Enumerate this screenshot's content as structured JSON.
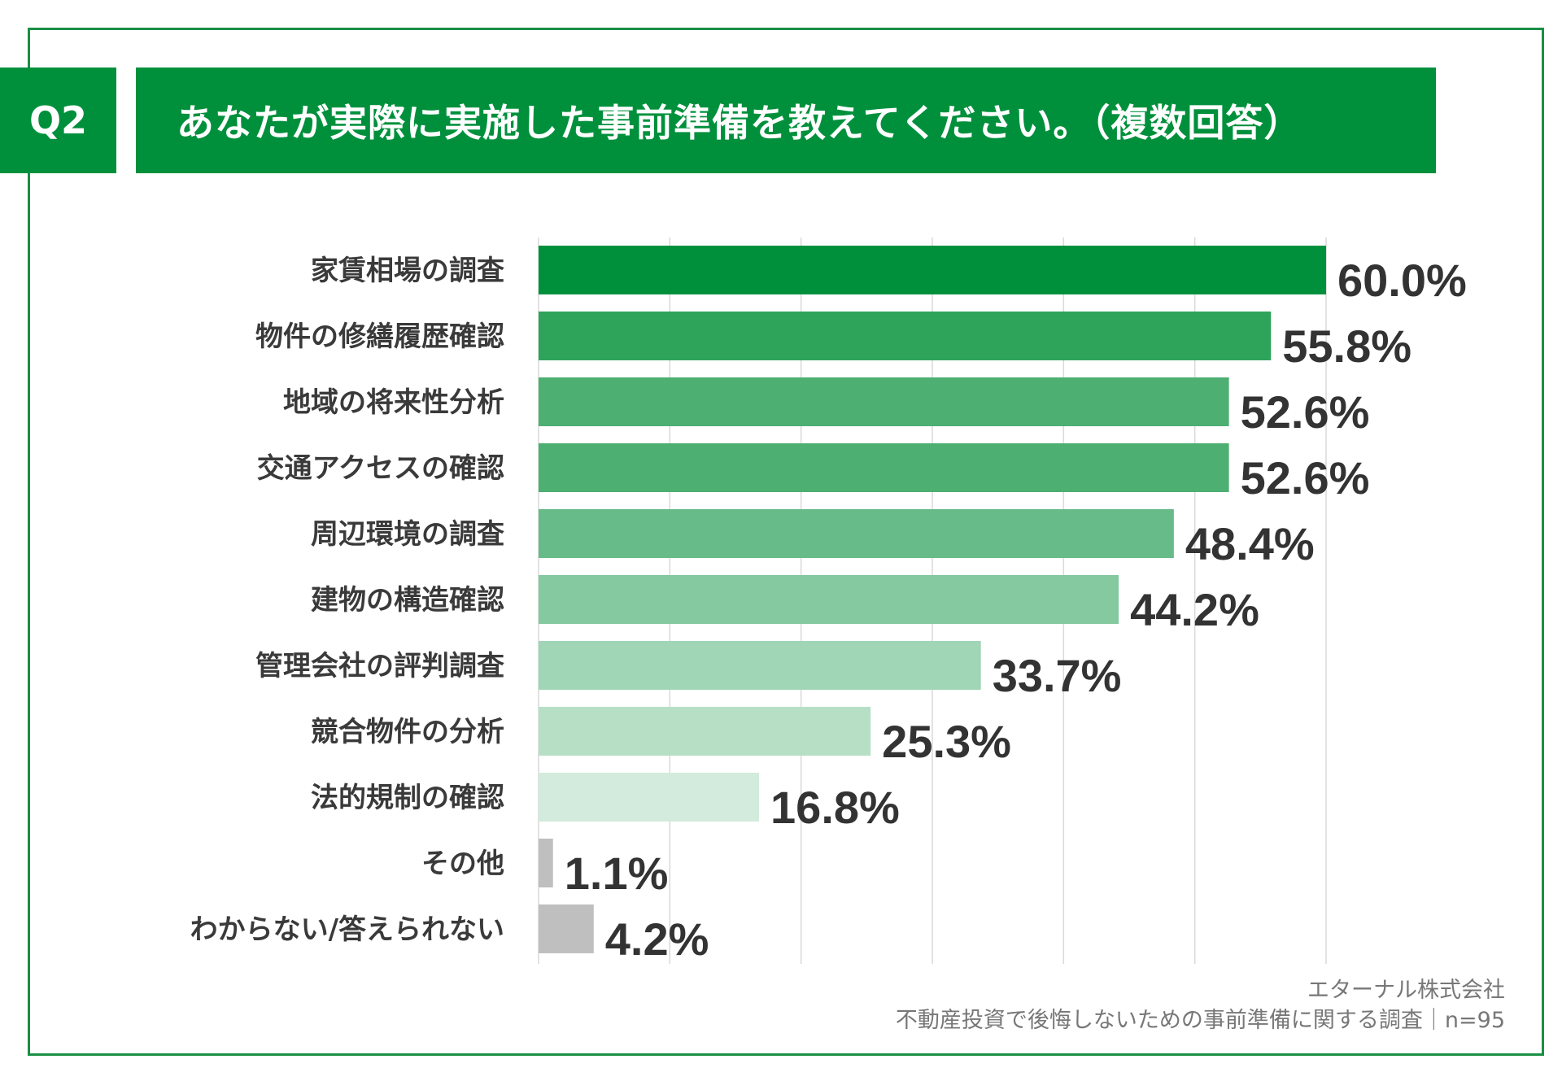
{
  "header": {
    "badge": "Q2",
    "title": "あなたが実際に実施した事前準備を教えてください。（複数回答）"
  },
  "chart_data": {
    "type": "bar",
    "orientation": "horizontal",
    "categories": [
      "家賃相場の調査",
      "物件の修繕履歴確認",
      "地域の将来性分析",
      "交通アクセスの確認",
      "周辺環境の調査",
      "建物の構造確認",
      "管理会社の評判調査",
      "競合物件の分析",
      "法的規制の確認",
      "その他",
      "わからない/答えられない"
    ],
    "values": [
      60.0,
      55.8,
      52.6,
      52.6,
      48.4,
      44.2,
      33.7,
      25.3,
      16.8,
      1.1,
      4.2
    ],
    "value_labels": [
      "60.0%",
      "55.8%",
      "52.6%",
      "52.6%",
      "48.4%",
      "44.2%",
      "33.7%",
      "25.3%",
      "16.8%",
      "1.1%",
      "4.2%"
    ],
    "xlim": [
      0,
      60
    ],
    "grid": true,
    "bar_colors": [
      "#00903c",
      "#2ea35a",
      "#4daf72",
      "#4daf72",
      "#67bb88",
      "#84c9a0",
      "#a0d5b5",
      "#b6dfc6",
      "#d2ebdc",
      "#bfbfbf",
      "#bfbfbf"
    ]
  },
  "footer": {
    "company": "エターナル株式会社",
    "survey": "不動産投資で後悔しないための事前準備に関する調査｜n=95"
  }
}
